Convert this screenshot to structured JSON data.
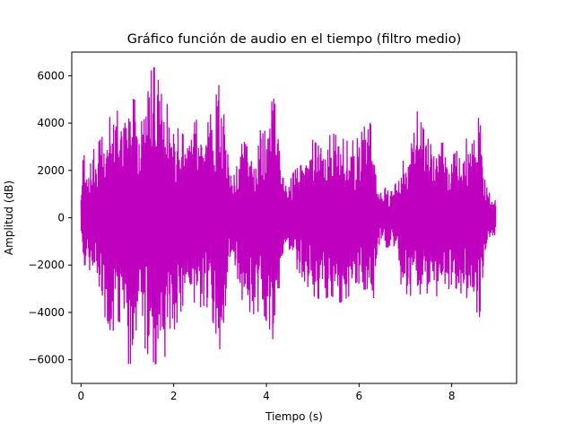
{
  "chart_data": {
    "type": "line",
    "title": "Gráfico función de audio en el tiempo (filtro medio)",
    "xlabel": "Tiempo (s)",
    "ylabel": "Amplitud (dB)",
    "xlim": [
      -0.2,
      9.4
    ],
    "ylim": [
      -7000,
      7000
    ],
    "x_ticks": [
      0,
      2,
      4,
      6,
      8
    ],
    "y_ticks": [
      -6000,
      -4000,
      -2000,
      0,
      2000,
      4000,
      6000
    ],
    "x_tick_labels": [
      "0",
      "2",
      "4",
      "6",
      "8"
    ],
    "y_tick_labels": [
      "−6000",
      "−4000",
      "−2000",
      "0",
      "2000",
      "4000",
      "6000"
    ],
    "grid": false,
    "series": [
      {
        "color": "#bf00bf",
        "x_range": [
          0,
          8.95
        ],
        "envelope": {
          "t": [
            0,
            0.05,
            0.15,
            0.3,
            0.45,
            0.6,
            0.75,
            0.9,
            1.05,
            1.15,
            1.3,
            1.45,
            1.6,
            1.75,
            1.9,
            2.0,
            2.1,
            2.25,
            2.4,
            2.55,
            2.7,
            2.85,
            3.0,
            3.1,
            3.2,
            3.28,
            3.35,
            3.5,
            3.7,
            3.9,
            4.05,
            4.15,
            4.25,
            4.35,
            4.45,
            4.6,
            4.8,
            5.0,
            5.2,
            5.4,
            5.6,
            5.8,
            6.0,
            6.2,
            6.3,
            6.4,
            6.5,
            6.6,
            6.7,
            6.8,
            6.9,
            7.05,
            7.2,
            7.4,
            7.6,
            7.8,
            8.0,
            8.2,
            8.4,
            8.6,
            8.75,
            8.85,
            8.95
          ],
          "upper": [
            1200,
            2700,
            2400,
            3000,
            3400,
            4200,
            4600,
            4300,
            5100,
            5000,
            4800,
            6100,
            6400,
            5100,
            4700,
            3500,
            3800,
            3400,
            3900,
            4300,
            3800,
            4700,
            5800,
            4100,
            2000,
            1500,
            2400,
            3300,
            2600,
            3900,
            4500,
            5100,
            4300,
            2000,
            1300,
            2000,
            2300,
            3300,
            2900,
            3600,
            3400,
            3200,
            3400,
            4200,
            3700,
            1200,
            1000,
            1400,
            1100,
            1500,
            2700,
            2700,
            4800,
            3700,
            2900,
            3200,
            2600,
            3000,
            3600,
            4300,
            1300,
            900,
            900
          ],
          "lower": [
            -1200,
            -2400,
            -2100,
            -2600,
            -3100,
            -5600,
            -4300,
            -4500,
            -6500,
            -4600,
            -5200,
            -5800,
            -6200,
            -6000,
            -5700,
            -4800,
            -4300,
            -3400,
            -3500,
            -3800,
            -3700,
            -4400,
            -5600,
            -4100,
            -2100,
            -1500,
            -2300,
            -3700,
            -4100,
            -3900,
            -4600,
            -5200,
            -4300,
            -2000,
            -1300,
            -2000,
            -2600,
            -3300,
            -3500,
            -3300,
            -3600,
            -3300,
            -3100,
            -3000,
            -4200,
            -1300,
            -900,
            -1300,
            -1100,
            -1300,
            -2800,
            -3300,
            -3300,
            -3200,
            -3200,
            -3500,
            -2800,
            -3200,
            -3500,
            -4200,
            -1300,
            -900,
            -900
          ]
        }
      }
    ]
  }
}
